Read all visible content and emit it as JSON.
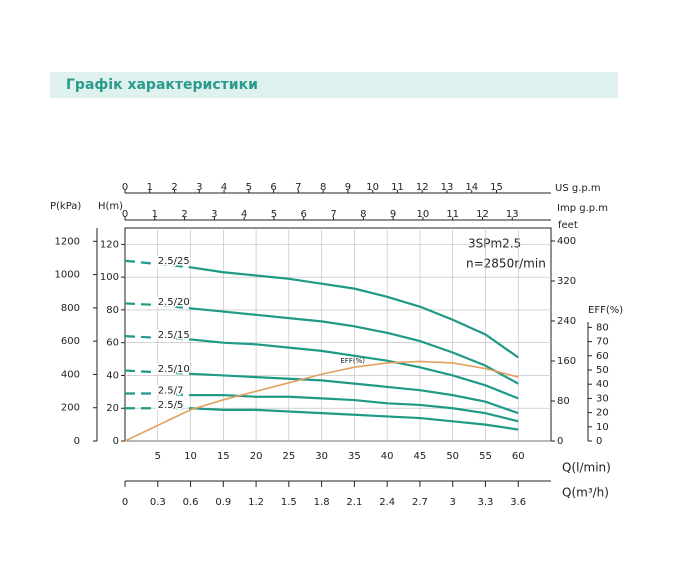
{
  "header": {
    "title": "Графік характеристики"
  },
  "chart_data": {
    "type": "line",
    "annotations": [
      "3SPm2.5",
      "n=2850r/min"
    ],
    "x": [
      0,
      5,
      10,
      15,
      20,
      25,
      30,
      35,
      40,
      45,
      50,
      55,
      60
    ],
    "xlabel": "Q(l/min)",
    "xlim": [
      0,
      65
    ],
    "xticks": [
      5,
      10,
      15,
      20,
      25,
      30,
      35,
      40,
      45,
      50,
      55,
      60
    ],
    "ylabel": "H(m)",
    "ylim": [
      0,
      130
    ],
    "yticks": [
      0,
      20,
      40,
      60,
      80,
      100,
      120
    ],
    "y2label": "EFF(%)",
    "y2lim": [
      0,
      150
    ],
    "y2ticks": [
      0,
      10,
      20,
      30,
      40,
      50,
      60,
      70,
      80
    ],
    "grid": true,
    "dashed_below_x": 10,
    "series": [
      {
        "name": "2.5/25",
        "color": "#1f9a86",
        "values": [
          110,
          108,
          106,
          103,
          101,
          99,
          96,
          93,
          88,
          82,
          74,
          65,
          51
        ]
      },
      {
        "name": "2.5/20",
        "color": "#1f9a86",
        "values": [
          84,
          83,
          81,
          79,
          77,
          75,
          73,
          70,
          66,
          61,
          54,
          46,
          35
        ]
      },
      {
        "name": "2.5/15",
        "color": "#1f9a86",
        "values": [
          64,
          63,
          62,
          60,
          59,
          57,
          55,
          52,
          49,
          45,
          40,
          34,
          26
        ]
      },
      {
        "name": "2.5/10",
        "color": "#1f9a86",
        "values": [
          43,
          42,
          41,
          40,
          39,
          38,
          37,
          35,
          33,
          31,
          28,
          24,
          17
        ]
      },
      {
        "name": "2.5/7",
        "color": "#1f9a86",
        "values": [
          29,
          29,
          28,
          28,
          27,
          27,
          26,
          25,
          23,
          22,
          20,
          17,
          12
        ]
      },
      {
        "name": "2.5/5",
        "color": "#1f9a86",
        "values": [
          20,
          20,
          20,
          19,
          19,
          18,
          17,
          16,
          15,
          14,
          12,
          10,
          7
        ]
      },
      {
        "name": "EFF(%)",
        "color": "#e3a060",
        "axis": "y2",
        "values": [
          0,
          11,
          22,
          29,
          35,
          41,
          47,
          52,
          55,
          56,
          55,
          51,
          45
        ]
      }
    ],
    "p_axis": {
      "label": "P(kPa)",
      "lim": [
        0,
        1280
      ],
      "ticks": [
        0,
        200,
        400,
        600,
        800,
        1000,
        1200
      ]
    },
    "feet_axis": {
      "label": "feet",
      "lim": [
        0,
        426
      ],
      "ticks": [
        0,
        80,
        160,
        240,
        320,
        400
      ]
    },
    "us_gpm_axis": {
      "label": "US g.p.m",
      "lim": [
        0,
        17.2
      ],
      "ticks": [
        0,
        1,
        2,
        3,
        4,
        5,
        6,
        7,
        8,
        9,
        10,
        11,
        12,
        13,
        14,
        15
      ]
    },
    "imp_gpm_axis": {
      "label": "Imp g.p.m",
      "lim": [
        0,
        14.3
      ],
      "ticks": [
        0,
        1,
        2,
        3,
        4,
        5,
        6,
        7,
        8,
        9,
        10,
        11,
        12,
        13
      ]
    },
    "m3h_axis": {
      "label": "Q(m³/h)",
      "lim": [
        0,
        3.9
      ],
      "ticks": [
        0,
        0.3,
        0.6,
        0.9,
        1.2,
        1.5,
        1.8,
        2.1,
        2.4,
        2.7,
        3,
        3.3,
        3.6
      ]
    }
  }
}
